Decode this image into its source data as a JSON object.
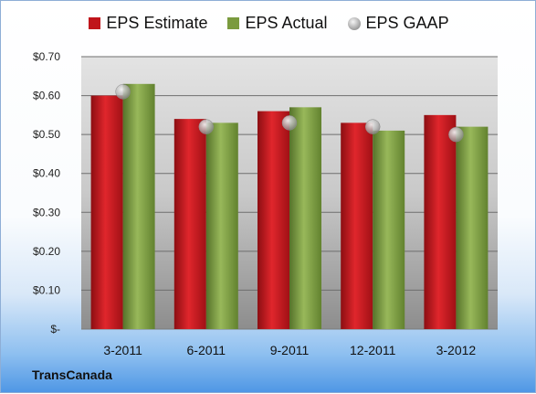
{
  "company": "TransCanada",
  "colors": {
    "estimate": "#c0151b",
    "actual": "#7a9b3e",
    "gaap": "#a9a9a9"
  },
  "chart_data": {
    "type": "bar",
    "categories": [
      "3-2011",
      "6-2011",
      "9-2011",
      "12-2011",
      "3-2012"
    ],
    "series": [
      {
        "name": "EPS Estimate",
        "values": [
          0.6,
          0.54,
          0.56,
          0.53,
          0.55
        ]
      },
      {
        "name": "EPS Actual",
        "values": [
          0.63,
          0.53,
          0.57,
          0.51,
          0.52
        ]
      },
      {
        "name": "EPS GAAP",
        "values": [
          0.61,
          0.52,
          0.53,
          0.52,
          0.5
        ]
      }
    ],
    "y_ticks": [
      "$-",
      "$0.10",
      "$0.20",
      "$0.30",
      "$0.40",
      "$0.50",
      "$0.60",
      "$0.70"
    ],
    "ylim": [
      0,
      0.7
    ],
    "legend": "top",
    "grid": true
  }
}
